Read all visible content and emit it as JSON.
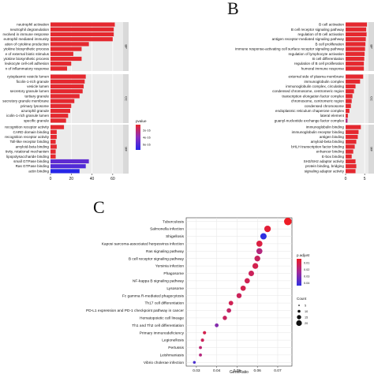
{
  "panel_letters": {
    "b": "B",
    "c": "C"
  },
  "chart_data": [
    {
      "id": "A",
      "type": "bar",
      "orientation": "horizontal",
      "xlim": [
        0,
        70
      ],
      "xticks": [
        "0",
        "20",
        "40",
        "60"
      ],
      "legend": {
        "title": "pvalue",
        "labels": [
          "2e-16",
          "4e-16",
          "6e-16"
        ],
        "placement": "right"
      },
      "facets": [
        {
          "name": "BP",
          "categories": [
            "neutrophil activation",
            "neutrophil degranulation",
            "nvolved in immune response",
            "eutrophil mediated immunity",
            "ation of cytokine production",
            "ytokine biosynthetic process",
            "e of external biotic stimulus",
            "ytokine biosynthetic process",
            "leukocyte cell-cell adhesion",
            "n of inflammatory response"
          ],
          "values": [
            62,
            61,
            61,
            60,
            37,
            30,
            22,
            30,
            20,
            16
          ],
          "pvalue": [
            1e-17,
            1e-17,
            1e-17,
            1e-17,
            1e-17,
            1e-17,
            1e-17,
            1e-17,
            1e-17,
            1e-17
          ]
        },
        {
          "name": "CC",
          "categories": [
            "cytoplasmic vesicle lumen",
            "ficolin-1-rich granule",
            "vesicle lumen",
            "secretory granule lumen",
            "tertiary granule",
            "secretory granule membrane",
            "primary lysosome",
            "azurophil granule",
            "icolin-1-rich granule lumen",
            "specific granule"
          ],
          "values": [
            34,
            33,
            32,
            31,
            28,
            23,
            20,
            19,
            17,
            15
          ],
          "pvalue": [
            1e-17,
            1e-17,
            1e-17,
            1e-17,
            1e-17,
            1e-17,
            1e-17,
            1e-17,
            1e-17,
            1e-17
          ]
        },
        {
          "name": "MF",
          "categories": [
            "recognition receptor activity",
            "CARD domain binding",
            "recognition receptor activity",
            "Toll-like receptor binding",
            "amyloid-beta binding",
            "tivity, rotational mechanism",
            "lipopolysaccharide binding",
            "small GTPase binding",
            "Ras GTPase binding",
            "actin binding"
          ],
          "values": [
            13,
            6,
            6,
            5,
            6,
            5,
            5,
            37,
            34,
            28
          ],
          "pvalue": [
            1e-17,
            1e-17,
            1e-17,
            1e-17,
            1e-17,
            1e-17,
            1e-17,
            5e-16,
            5.5e-16,
            7e-16
          ]
        }
      ]
    },
    {
      "id": "B",
      "type": "bar",
      "orientation": "horizontal",
      "xlim": [
        0,
        6
      ],
      "xticks": [
        "0",
        "5"
      ],
      "facets": [
        {
          "name": "BP",
          "categories": [
            "B cell activation",
            "B cell receptor signaling pathway",
            "regulation of B cell activation",
            "antigen receptor-mediated signaling pathway",
            "B cell proliferation",
            "immune response-activating cell surface receptor signaling pathway",
            "regulation of lymphocyte activation",
            "B cell differentiation",
            "regulation of B cell proliferation",
            "humoral immune response"
          ],
          "values": [
            5.6,
            5.4,
            5.5,
            5.3,
            5.2,
            5.1,
            5.0,
            4.9,
            4.8,
            4.8
          ],
          "pvalue": [
            1e-17,
            1e-17,
            1e-17,
            1e-17,
            1e-17,
            1e-17,
            1e-17,
            1e-17,
            1e-17,
            1e-17
          ]
        },
        {
          "name": "CC",
          "categories": [
            "external side of plasma membrane",
            "immunoglobulin complex",
            "immunoglobulin complex, circulating",
            "condensed chromosome, centromeric region",
            "transcription elongation factor complex",
            "chromosome, centromeric region",
            "condensed chromosome",
            "endoplasmic reticulum chaperone complex",
            "lateral element",
            "guanyl-nucleotide exchange factor complex"
          ],
          "values": [
            4.6,
            3.8,
            2.6,
            2.2,
            1.8,
            1.6,
            1.4,
            1.0,
            0.6,
            0.5
          ],
          "pvalue": [
            1e-17,
            1e-17,
            1e-17,
            1e-17,
            1e-17,
            1e-17,
            1e-17,
            1e-17,
            1e-17,
            2e-16
          ]
        },
        {
          "name": "MF",
          "categories": [
            "immunoglobulin binding",
            "immunoglobulin receptor binding",
            "antigen binding",
            "amyloid-beta binding",
            "bHLH transcription factor binding",
            "enhancer binding",
            "E-box binding",
            "SH3/SH2 adaptor activity",
            "protein binding, bridging",
            "signaling adaptor activity"
          ],
          "values": [
            4.0,
            3.4,
            3.2,
            2.8,
            2.4,
            2.0,
            1.6,
            2.6,
            2.8,
            2.6
          ],
          "pvalue": [
            1e-17,
            1e-17,
            1e-17,
            1e-17,
            1e-17,
            1e-17,
            1e-17,
            1e-17,
            1e-17,
            1e-17
          ]
        }
      ]
    },
    {
      "id": "C",
      "type": "scatter",
      "title": "",
      "xlabel": "GeneRatio",
      "ylabel": "",
      "xlim": [
        0.025,
        0.077
      ],
      "xticks": [
        "0.03",
        "0.04",
        "0.05",
        "0.06",
        "0.07"
      ],
      "categories": [
        "Tuberculosis",
        "Salmonella infection",
        "Shigellosis",
        "Kaposi sarcoma-associated herpesvirus infection",
        "Ras signaling pathway",
        "B cell receptor signaling pathway",
        "Yersinia infection",
        "Phagosome",
        "NF-kappa B signaling pathway",
        "Lysosome",
        "Fc gamma R-mediated phagocytosis",
        "Th17 cell differentiation",
        "PD-L1 expression and PD-1 checkpoint pathway in cancer",
        "Hematopoietic cell lineage",
        "Th1 and Th2 cell differentiation",
        "Primary immunodeficiency",
        "Legionellosis",
        "Pertussis",
        "Leishmaniasis",
        "Vibrio cholerae infection"
      ],
      "x": [
        0.075,
        0.065,
        0.063,
        0.061,
        0.061,
        0.06,
        0.059,
        0.057,
        0.055,
        0.053,
        0.051,
        0.047,
        0.046,
        0.044,
        0.04,
        0.034,
        0.033,
        0.032,
        0.032,
        0.029
      ],
      "p_adjust": [
        0.005,
        0.008,
        0.045,
        0.01,
        0.02,
        0.015,
        0.012,
        0.014,
        0.013,
        0.012,
        0.014,
        0.013,
        0.016,
        0.015,
        0.03,
        0.012,
        0.014,
        0.018,
        0.02,
        0.04
      ],
      "count": [
        30,
        26,
        25,
        24,
        24,
        23,
        23,
        22,
        21,
        21,
        20,
        18,
        18,
        17,
        15,
        13,
        13,
        12,
        12,
        11
      ],
      "legend_padj": {
        "title": "p.adjust",
        "labels": [
          "0.01",
          "0.02",
          "0.03",
          "0.04"
        ]
      },
      "legend_count": {
        "title": "Count",
        "labels": [
          "5",
          "10",
          "15",
          "20"
        ]
      }
    }
  ]
}
